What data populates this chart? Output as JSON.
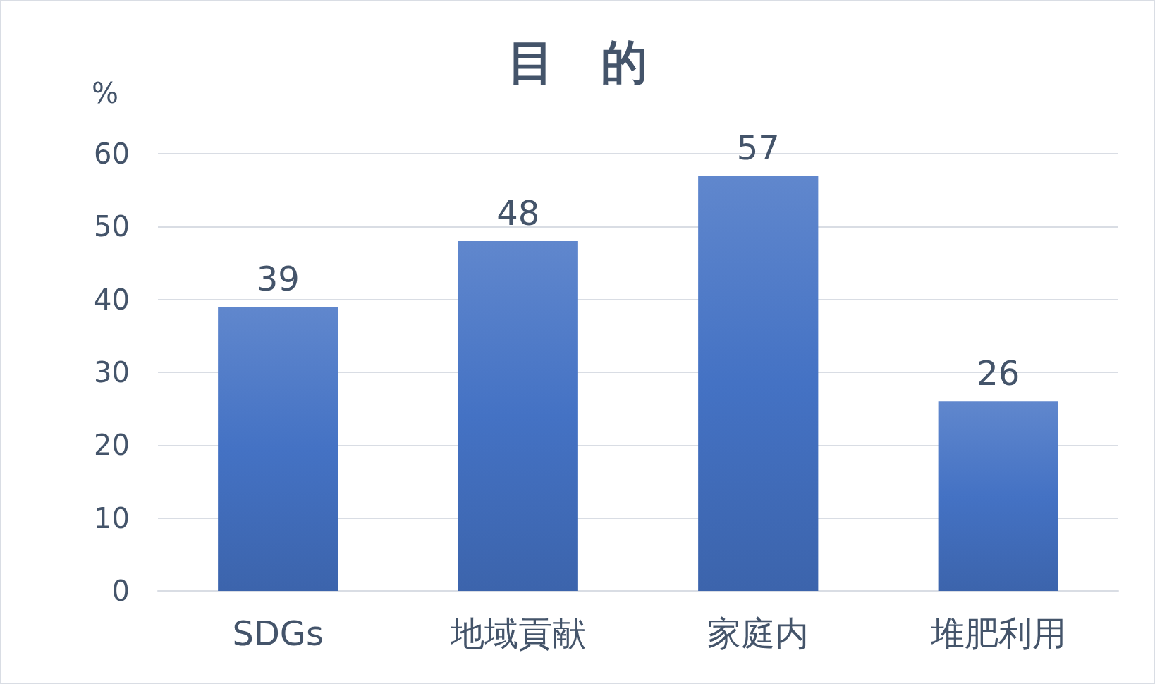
{
  "chart_data": {
    "type": "bar",
    "title": "目　的",
    "ylabel": "%",
    "categories": [
      "SDGs",
      "地域貢献",
      "家庭内",
      "堆肥利用"
    ],
    "values": [
      39,
      48,
      57,
      26
    ],
    "color": "#4472c4",
    "ylim": [
      0,
      60
    ],
    "yticks": [
      0,
      10,
      20,
      30,
      40,
      50,
      60
    ],
    "grid": "y",
    "data_labels": true
  }
}
